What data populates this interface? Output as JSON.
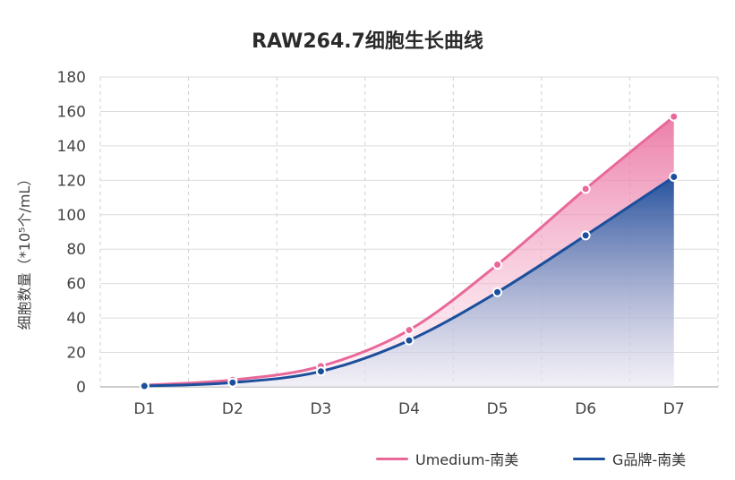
{
  "chart_data": {
    "type": "area",
    "title": "RAW264.7细胞生长曲线",
    "xlabel": "",
    "ylabel": "细胞数量（*10⁵个/mL）",
    "categories": [
      "D1",
      "D2",
      "D3",
      "D4",
      "D5",
      "D6",
      "D7"
    ],
    "ylim": [
      0,
      180
    ],
    "yticks": [
      0,
      20,
      40,
      60,
      80,
      100,
      120,
      140,
      160,
      180
    ],
    "grid": true,
    "legend_position": "bottom-right",
    "series": [
      {
        "name": "Umedium-南美",
        "color": "#e9689a",
        "values": [
          1,
          4,
          12,
          33,
          71,
          115,
          157
        ]
      },
      {
        "name": "G品牌-南美",
        "color": "#1b4f9c",
        "values": [
          0.5,
          2.5,
          9,
          27,
          55,
          88,
          122
        ]
      }
    ]
  }
}
